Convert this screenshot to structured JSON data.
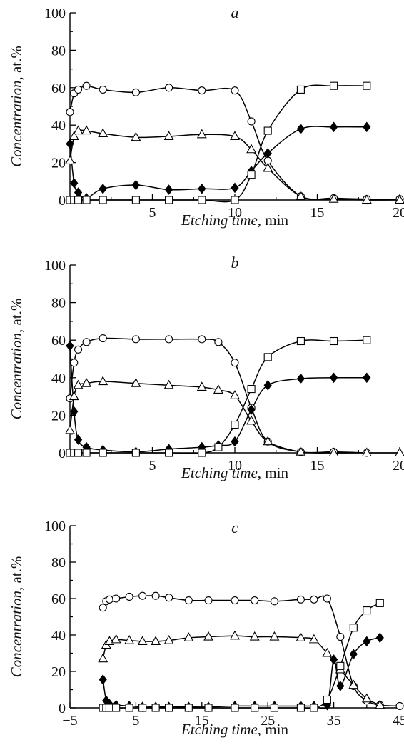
{
  "chart_data": [
    {
      "type": "line",
      "title": "a",
      "xlabel": "Etching time",
      "xlabel_unit": ", min",
      "ylabel": "Concentration",
      "ylabel_unit": ", at.%",
      "xlim": [
        0,
        20
      ],
      "ylim": [
        0,
        100
      ],
      "xticks": [
        5,
        10,
        15,
        20
      ],
      "xtick_labels": [
        "5",
        "10",
        "15",
        "20"
      ],
      "yticks": [
        0,
        20,
        40,
        60,
        80,
        100
      ],
      "ytick_labels": [
        "0",
        "20",
        "40",
        "60",
        "80",
        "100"
      ],
      "grid": false,
      "legend": "none",
      "series": [
        {
          "marker": "circle",
          "x": [
            0,
            0.25,
            0.5,
            1,
            2,
            4,
            6,
            8,
            10,
            11,
            12,
            14,
            16,
            18,
            20
          ],
          "y": [
            47,
            57,
            59,
            61,
            59,
            57.5,
            60,
            58.5,
            58.5,
            42,
            21,
            2,
            1,
            0.5,
            0.5
          ]
        },
        {
          "marker": "triangle",
          "x": [
            0,
            0.25,
            0.5,
            1,
            2,
            4,
            6,
            8,
            10,
            11,
            12,
            14,
            16,
            18,
            20
          ],
          "y": [
            21,
            34,
            37,
            37,
            35.5,
            33.5,
            34,
            35,
            34,
            27,
            17,
            2,
            0.5,
            0,
            0
          ]
        },
        {
          "marker": "diamond-filled",
          "x": [
            0,
            0.25,
            0.5,
            1,
            2,
            4,
            6,
            8,
            10,
            11,
            12,
            14,
            16,
            18
          ],
          "y": [
            30,
            9,
            4,
            1,
            6,
            8,
            5.5,
            6,
            6.5,
            15.5,
            25,
            38,
            39,
            39
          ]
        },
        {
          "marker": "square",
          "x": [
            0,
            0.25,
            0.5,
            1,
            2,
            4,
            6,
            8,
            10,
            11,
            12,
            14,
            16,
            18
          ],
          "y": [
            0,
            0,
            0,
            0,
            0,
            0,
            0,
            0,
            0,
            13.5,
            37,
            59,
            61,
            61
          ]
        }
      ]
    },
    {
      "type": "line",
      "title": "b",
      "xlabel": "Etching time",
      "xlabel_unit": ", min",
      "ylabel": "Concentration",
      "ylabel_unit": ", at.%",
      "xlim": [
        0,
        20
      ],
      "ylim": [
        0,
        100
      ],
      "xticks": [
        5,
        10,
        15,
        20
      ],
      "xtick_labels": [
        "5",
        "10",
        "15",
        "20"
      ],
      "yticks": [
        0,
        20,
        40,
        60,
        80,
        100
      ],
      "ytick_labels": [
        "0",
        "20",
        "40",
        "60",
        "80",
        "100"
      ],
      "grid": false,
      "legend": "none",
      "series": [
        {
          "marker": "circle",
          "x": [
            0,
            0.25,
            0.5,
            1,
            2,
            4,
            6,
            8,
            9,
            10,
            11,
            12,
            14,
            16,
            18
          ],
          "y": [
            29,
            48,
            55,
            59,
            61,
            60.5,
            60.5,
            60.5,
            59,
            48,
            24,
            6,
            0.5,
            0.5,
            0
          ]
        },
        {
          "marker": "triangle",
          "x": [
            0,
            0.25,
            0.5,
            1,
            2,
            4,
            6,
            8,
            9,
            10,
            11,
            12,
            14,
            16,
            18,
            20
          ],
          "y": [
            12,
            30,
            36,
            37,
            38,
            37,
            36,
            35,
            33.5,
            30.5,
            17,
            6,
            0.5,
            0,
            0,
            0
          ]
        },
        {
          "marker": "diamond-filled",
          "x": [
            0,
            0.25,
            0.5,
            1,
            2,
            4,
            6,
            8,
            9,
            10,
            11,
            12,
            14,
            16,
            18
          ],
          "y": [
            57,
            22,
            7,
            3,
            1.5,
            0.5,
            2,
            3,
            4,
            6,
            23,
            36,
            39.5,
            40,
            40
          ]
        },
        {
          "marker": "square",
          "x": [
            0,
            0.25,
            0.5,
            1,
            2,
            4,
            6,
            8,
            9,
            10,
            11,
            12,
            14,
            16,
            18
          ],
          "y": [
            0,
            0,
            0,
            0,
            0,
            0,
            0,
            0,
            3,
            15,
            34,
            51,
            59.5,
            59.5,
            60
          ]
        }
      ]
    },
    {
      "type": "line",
      "title": "c",
      "xlabel": "Etching time",
      "xlabel_unit": ", min",
      "ylabel": "Concentration",
      "ylabel_unit": ", at.%",
      "xlim": [
        -5,
        45
      ],
      "ylim": [
        0,
        100
      ],
      "xticks": [
        -5,
        5,
        15,
        25,
        35,
        45
      ],
      "xtick_labels": [
        "−5",
        "5",
        "15",
        "25",
        "35",
        "45"
      ],
      "yticks": [
        0,
        20,
        40,
        60,
        80,
        100
      ],
      "ytick_labels": [
        "0",
        "20",
        "40",
        "60",
        "80",
        "100"
      ],
      "grid": false,
      "legend": "none",
      "series": [
        {
          "marker": "circle",
          "x": [
            0,
            0.5,
            1,
            2,
            4,
            6,
            8,
            10,
            13,
            16,
            20,
            23,
            26,
            30,
            32,
            34,
            36,
            38,
            40,
            42,
            45
          ],
          "y": [
            55,
            58.5,
            59.5,
            60,
            61,
            61.5,
            61.5,
            60.5,
            59,
            59,
            59,
            59,
            58.5,
            59.5,
            59.5,
            60,
            39,
            12,
            4,
            1.5,
            1
          ]
        },
        {
          "marker": "triangle",
          "x": [
            0,
            0.5,
            1,
            2,
            4,
            6,
            8,
            10,
            13,
            16,
            20,
            23,
            26,
            30,
            32,
            34,
            36,
            38,
            40,
            42
          ],
          "y": [
            27,
            34.5,
            36.5,
            37.5,
            37,
            36.5,
            36.5,
            37,
            38.5,
            39,
            39.5,
            39,
            39,
            38.5,
            37.5,
            30,
            21,
            12.5,
            5,
            1.5
          ]
        },
        {
          "marker": "diamond-filled",
          "x": [
            0,
            0.5,
            1,
            2,
            4,
            6,
            8,
            10,
            13,
            16,
            20,
            23,
            26,
            30,
            32,
            34,
            35,
            36,
            38,
            40,
            42
          ],
          "y": [
            15.5,
            4,
            2,
            1.5,
            1,
            0.5,
            0.5,
            0.5,
            0.5,
            0.5,
            1,
            1,
            1,
            1,
            1,
            1.5,
            26.5,
            12,
            29.5,
            36.5,
            38.5
          ]
        },
        {
          "marker": "square",
          "x": [
            0,
            0.5,
            1,
            2,
            4,
            6,
            8,
            10,
            13,
            16,
            20,
            23,
            26,
            30,
            32,
            34,
            36,
            38,
            40,
            42
          ],
          "y": [
            0,
            0,
            0,
            0,
            0,
            0,
            0,
            0,
            0,
            0,
            0,
            0,
            0,
            0,
            0,
            4.5,
            23,
            44,
            53.5,
            57.5
          ]
        }
      ]
    }
  ]
}
